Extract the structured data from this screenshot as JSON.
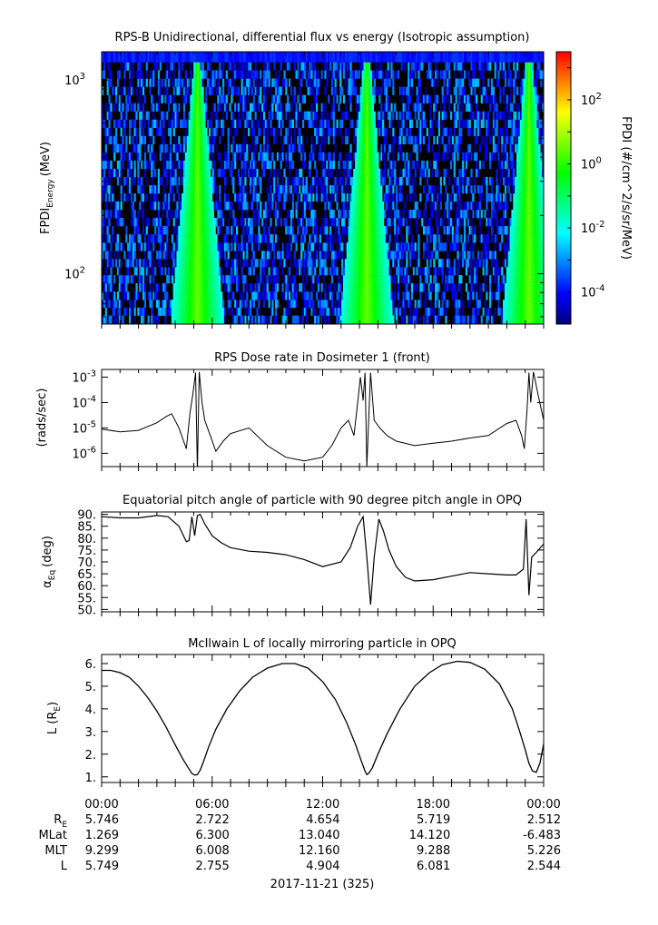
{
  "time_axis": {
    "ticks": [
      "00:00",
      "06:00",
      "12:00",
      "18:00",
      "00:00"
    ],
    "date_label": "2017-11-21 (325)"
  },
  "ephemeris": {
    "rows": [
      {
        "label": "R",
        "sub": "E",
        "values": [
          "5.746",
          "2.722",
          "4.654",
          "5.719",
          "2.512"
        ]
      },
      {
        "label": "MLat",
        "sub": "",
        "values": [
          "1.269",
          "6.300",
          "13.040",
          "14.120",
          "-6.483"
        ]
      },
      {
        "label": "MLT",
        "sub": "",
        "values": [
          "9.299",
          "6.008",
          "12.160",
          "9.288",
          "5.226"
        ]
      },
      {
        "label": "L",
        "sub": "",
        "values": [
          "5.749",
          "2.755",
          "4.904",
          "6.081",
          "2.544"
        ]
      }
    ]
  },
  "colorbar": {
    "title": "FPDI (#/cm^2/s/sr/MeV)",
    "tick_labels": [
      {
        "base": "10",
        "exp": "2",
        "value": 2
      },
      {
        "base": "10",
        "exp": "0",
        "value": 0
      },
      {
        "base": "10",
        "exp": "-2",
        "value": -2
      },
      {
        "base": "10",
        "exp": "-4",
        "value": -4
      }
    ],
    "log_range": [
      -5,
      3.5
    ],
    "colors": [
      "#000080",
      "#0000ff",
      "#0080ff",
      "#00ffff",
      "#00ff80",
      "#00ff00",
      "#80ff00",
      "#ffff00",
      "#ff8000",
      "#ff0000"
    ]
  },
  "chart_data": [
    {
      "type": "heatmap",
      "title": "RPS-B  Unidirectional, differential flux vs energy (Isotropic assumption)",
      "ylabel_main": "FPDI",
      "ylabel_sub": "Energy",
      "ylabel_unit": "(MeV)",
      "y_scale": "log",
      "ylim": [
        55,
        1400
      ],
      "y_tick_labels": [
        {
          "base": "10",
          "exp": "2",
          "value": 100
        },
        {
          "base": "10",
          "exp": "3",
          "value": 1000
        }
      ],
      "xlim_hours": [
        0,
        24
      ],
      "energy_channels_mev": [
        58,
        64,
        70,
        77,
        85,
        94,
        103,
        114,
        125,
        138,
        152,
        168,
        185,
        204,
        225,
        248,
        273,
        301,
        332,
        366,
        403,
        445,
        490,
        540,
        596,
        657,
        724,
        798,
        880,
        970,
        1070,
        1180,
        1300
      ],
      "belt_crossings_hours": [
        5.2,
        14.4,
        23.2
      ],
      "belt_peak_log_flux": 0.5,
      "background_log_flux": [
        -5,
        -2.5
      ],
      "top_channel_log_flux": -4.2
    },
    {
      "type": "line",
      "title": "RPS  Dose rate in Dosimeter 1 (front)",
      "ylabel": "(rads/sec)",
      "y_scale": "log",
      "ylim": [
        3e-07,
        0.002
      ],
      "y_tick_labels": [
        {
          "base": "10",
          "exp": "-3",
          "value": 0.001
        },
        {
          "base": "10",
          "exp": "-4",
          "value": 0.0001
        },
        {
          "base": "10",
          "exp": "-5",
          "value": 1e-05
        },
        {
          "base": "10",
          "exp": "-6",
          "value": 1e-06
        }
      ],
      "x": [
        0,
        1,
        2,
        3,
        3.5,
        3.8,
        4.2,
        4.6,
        4.8,
        4.95,
        5.1,
        5.2,
        5.3,
        5.45,
        5.6,
        5.9,
        6.2,
        6.6,
        7,
        8,
        9,
        10,
        11,
        12,
        12.5,
        13,
        13.4,
        13.7,
        13.9,
        14.05,
        14.2,
        14.3,
        14.4,
        14.5,
        14.6,
        14.8,
        15.1,
        15.5,
        16,
        17,
        18,
        19,
        20,
        21,
        22,
        22.5,
        22.8,
        22.95,
        23.1,
        23.2,
        23.3,
        23.45,
        23.7,
        24
      ],
      "values": [
        9e-06,
        7e-06,
        8e-06,
        1.6e-05,
        2.8e-05,
        3.6e-05,
        1e-05,
        1.5e-06,
        4e-05,
        0.0002,
        0.0015,
        2e-07,
        0.0016,
        0.0001,
        2e-05,
        5e-06,
        1.2e-06,
        3e-06,
        6e-06,
        1e-05,
        2e-06,
        7e-07,
        5e-07,
        7e-07,
        2e-06,
        1e-05,
        2e-05,
        5e-06,
        0.0001,
        0.001,
        0.00012,
        0.0015,
        3e-07,
        2e-05,
        0.0015,
        2e-05,
        1e-05,
        5e-06,
        3e-06,
        2e-06,
        2.5e-06,
        3e-06,
        4e-06,
        5e-06,
        1.5e-05,
        2e-05,
        5e-06,
        1.5e-06,
        5e-05,
        0.0015,
        0.0001,
        0.0016,
        0.0002,
        2e-05
      ]
    },
    {
      "type": "line",
      "title": "Equatorial pitch angle of particle with 90 degree pitch angle in OPQ",
      "ylabel_main": "α",
      "ylabel_sub": "Eq",
      "ylabel_unit": "(deg)",
      "ylim": [
        49,
        91
      ],
      "y_ticks": [
        90,
        85,
        80,
        75,
        70,
        65,
        60,
        55,
        50
      ],
      "y_tick_labels": [
        "90.",
        "85.",
        "80.",
        "75.",
        "70.",
        "65.",
        "60.",
        "55.",
        "50."
      ],
      "x": [
        0,
        1,
        2,
        3,
        3.6,
        4.2,
        4.6,
        4.75,
        4.9,
        5.05,
        5.2,
        5.35,
        5.6,
        6,
        6.5,
        7,
        8,
        9,
        10,
        11,
        12,
        13,
        13.5,
        13.9,
        14.2,
        14.4,
        14.6,
        14.8,
        15.05,
        15.3,
        15.6,
        16,
        16.5,
        17,
        18,
        19,
        20,
        21,
        22,
        22.5,
        22.9,
        23.05,
        23.2,
        23.35,
        23.6,
        24
      ],
      "values": [
        89,
        88.5,
        88.5,
        89.5,
        89,
        85,
        78.5,
        79,
        89,
        81,
        89.5,
        90,
        86,
        81,
        78,
        76,
        74.5,
        74,
        73,
        71,
        68,
        70,
        76,
        85,
        89,
        72,
        52,
        72,
        88,
        83,
        75,
        68,
        63.5,
        62,
        62.5,
        64,
        65.5,
        65,
        64.5,
        64.5,
        67,
        88,
        56,
        72,
        74,
        77.5
      ]
    },
    {
      "type": "line",
      "title": "McIlwain L of locally mirroring particle in OPQ",
      "ylabel_main": "L (R",
      "ylabel_sub": "E",
      "ylabel_unit": ")",
      "ylim": [
        0.75,
        6.4
      ],
      "y_ticks": [
        6,
        5,
        4,
        3,
        2,
        1
      ],
      "y_tick_labels": [
        "6.",
        "5.",
        "4.",
        "3.",
        "2.",
        "1."
      ],
      "x": [
        0,
        0.5,
        1,
        1.5,
        2,
        2.5,
        3,
        3.5,
        4,
        4.4,
        4.7,
        4.9,
        5.05,
        5.2,
        5.35,
        5.5,
        5.8,
        6.2,
        6.8,
        7.5,
        8.2,
        9,
        9.8,
        10.5,
        11.2,
        12,
        12.7,
        13.3,
        13.8,
        14.1,
        14.3,
        14.4,
        14.5,
        14.7,
        15,
        15.5,
        16.2,
        17,
        17.8,
        18.5,
        19.3,
        20,
        20.8,
        21.6,
        22.3,
        22.7,
        23,
        23.2,
        23.4,
        23.6,
        23.8,
        24
      ],
      "values": [
        5.7,
        5.7,
        5.6,
        5.4,
        5.0,
        4.5,
        3.9,
        3.2,
        2.4,
        1.8,
        1.4,
        1.15,
        1.08,
        1.1,
        1.3,
        1.6,
        2.3,
        3.1,
        4.0,
        4.8,
        5.4,
        5.8,
        6.0,
        6.0,
        5.8,
        5.2,
        4.4,
        3.4,
        2.4,
        1.7,
        1.25,
        1.1,
        1.15,
        1.4,
        2.0,
        2.9,
        4.0,
        5.0,
        5.6,
        5.95,
        6.1,
        6.05,
        5.75,
        5.1,
        4.0,
        3.0,
        2.2,
        1.6,
        1.25,
        1.2,
        1.6,
        2.45
      ]
    }
  ]
}
